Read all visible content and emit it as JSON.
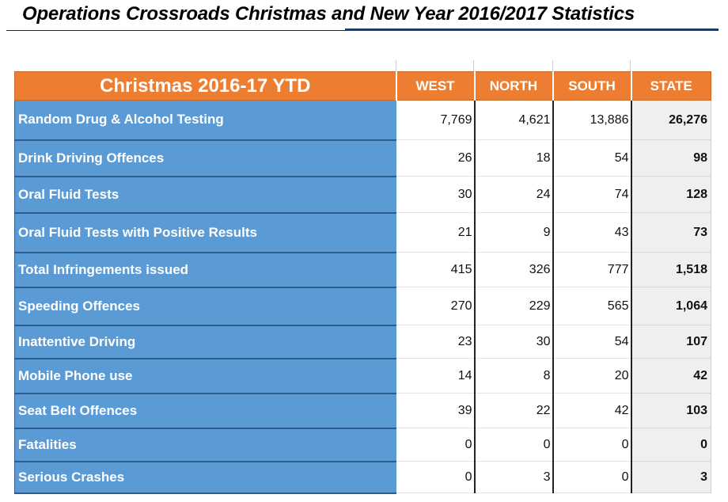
{
  "title": "Operations Crossroads Christmas and New Year 2016/2017 Statistics",
  "table": {
    "header_label": "Christmas 2016-17 YTD",
    "columns": [
      "WEST",
      "NORTH",
      "SOUTH",
      "STATE"
    ],
    "rows": [
      {
        "label": "Random Drug & Alcohol Testing",
        "west": "7,769",
        "north": "4,621",
        "south": "13,886",
        "state": "26,276"
      },
      {
        "label": "Drink Driving Offences",
        "west": "26",
        "north": "18",
        "south": "54",
        "state": "98"
      },
      {
        "label": "Oral Fluid Tests",
        "west": "30",
        "north": "24",
        "south": "74",
        "state": "128"
      },
      {
        "label": "Oral Fluid Tests with Positive Results",
        "west": "21",
        "north": "9",
        "south": "43",
        "state": "73"
      },
      {
        "label": "Total Infringements issued",
        "west": "415",
        "north": "326",
        "south": "777",
        "state": "1,518"
      },
      {
        "label": "Speeding Offences",
        "west": "270",
        "north": "229",
        "south": "565",
        "state": "1,064"
      },
      {
        "label": "Inattentive Driving",
        "west": "23",
        "north": "30",
        "south": "54",
        "state": "107"
      },
      {
        "label": "Mobile Phone use",
        "west": "14",
        "north": "8",
        "south": "20",
        "state": "42"
      },
      {
        "label": "Seat Belt Offences",
        "west": "39",
        "north": "22",
        "south": "42",
        "state": "103"
      },
      {
        "label": "Fatalities",
        "west": "0",
        "north": "0",
        "south": "0",
        "state": "0"
      },
      {
        "label": "Serious Crashes",
        "west": "0",
        "north": "3",
        "south": "0",
        "state": "3"
      }
    ]
  },
  "colors": {
    "header_orange": "#ed7d31",
    "label_blue": "#5b9bd5",
    "state_gray": "#efefef"
  }
}
